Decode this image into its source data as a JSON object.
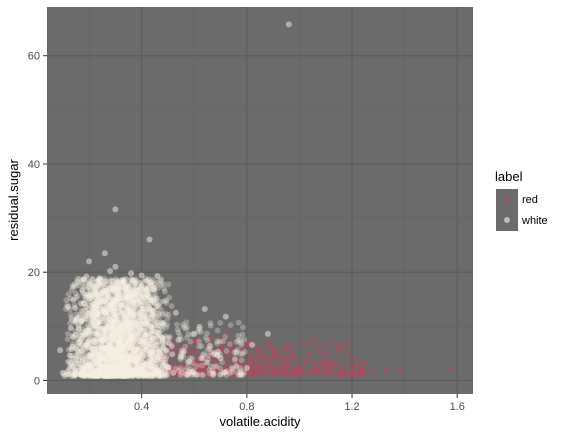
{
  "chart_data": {
    "type": "scatter",
    "xlabel": "volatile.acidity",
    "ylabel": "residual.sugar",
    "xlim": [
      0.04,
      1.66
    ],
    "ylim": [
      -2.5,
      69
    ],
    "x_ticks": [
      0.4,
      0.8,
      1.2,
      1.6
    ],
    "x_tick_labels": [
      "0.4",
      "0.8",
      "1.2",
      "1.6"
    ],
    "y_ticks": [
      0,
      20,
      40,
      60
    ],
    "y_tick_labels": [
      "0",
      "20",
      "40",
      "60"
    ],
    "grid": true,
    "legend": {
      "title": "label",
      "position": "right"
    },
    "colors": {
      "panel": "#6b6b6b",
      "grid_major": "#5a5a5a",
      "grid_minor": "#636363"
    },
    "series": [
      {
        "name": "red",
        "color": "#b8475e",
        "points": [
          [
            0.62,
            2.2
          ],
          [
            0.66,
            1.9
          ],
          [
            0.7,
            2.4
          ],
          [
            0.74,
            2.0
          ],
          [
            0.78,
            1.8
          ],
          [
            0.82,
            2.6
          ],
          [
            0.86,
            2.2
          ],
          [
            0.9,
            1.9
          ],
          [
            0.94,
            2.3
          ],
          [
            0.98,
            2.0
          ],
          [
            0.6,
            3.2
          ],
          [
            0.64,
            2.8
          ],
          [
            0.68,
            3.6
          ],
          [
            0.72,
            3.1
          ],
          [
            0.76,
            2.7
          ],
          [
            0.8,
            3.3
          ],
          [
            0.84,
            2.9
          ],
          [
            0.88,
            3.4
          ],
          [
            0.92,
            2.6
          ],
          [
            0.96,
            3.0
          ],
          [
            0.58,
            1.6
          ],
          [
            0.62,
            4.3
          ],
          [
            0.66,
            5.0
          ],
          [
            0.7,
            4.1
          ],
          [
            0.74,
            5.6
          ],
          [
            0.78,
            4.6
          ],
          [
            0.82,
            3.9
          ],
          [
            0.86,
            4.4
          ],
          [
            0.9,
            5.2
          ],
          [
            0.94,
            4.0
          ],
          [
            1.0,
            2.3
          ],
          [
            1.04,
            1.8
          ],
          [
            1.08,
            2.5
          ],
          [
            1.12,
            2.1
          ],
          [
            1.16,
            1.7
          ],
          [
            1.2,
            2.4
          ],
          [
            1.24,
            2.0
          ],
          [
            1.28,
            1.6
          ],
          [
            1.33,
            1.9
          ],
          [
            1.58,
            2.1
          ],
          [
            0.55,
            2.1
          ],
          [
            0.52,
            1.9
          ],
          [
            0.5,
            2.4
          ],
          [
            0.48,
            2.0
          ],
          [
            0.46,
            1.8
          ],
          [
            0.44,
            2.2
          ],
          [
            0.42,
            2.6
          ],
          [
            0.4,
            2.3
          ],
          [
            0.38,
            1.9
          ],
          [
            0.36,
            2.5
          ],
          [
            0.56,
            6.4
          ],
          [
            0.6,
            7.2
          ],
          [
            0.66,
            7.7
          ],
          [
            0.7,
            6.2
          ],
          [
            0.74,
            7.0
          ],
          [
            0.8,
            6.6
          ],
          [
            0.84,
            5.9
          ],
          [
            0.88,
            6.8
          ],
          [
            1.12,
            3.1
          ],
          [
            1.38,
            1.8
          ],
          [
            1.02,
            3.4
          ],
          [
            1.06,
            2.9
          ],
          [
            1.1,
            3.8
          ],
          [
            0.98,
            4.6
          ],
          [
            0.72,
            8.3
          ],
          [
            0.64,
            2.4
          ],
          [
            0.68,
            1.5
          ],
          [
            0.76,
            3.5
          ],
          [
            0.84,
            2.1
          ],
          [
            0.92,
            1.7
          ]
        ]
      },
      {
        "name": "white",
        "color": "#f6f1e4",
        "points": [
          [
            0.96,
            65.8
          ],
          [
            0.3,
            31.6
          ],
          [
            0.43,
            26.05
          ],
          [
            0.26,
            23.5
          ],
          [
            0.2,
            22.0
          ],
          [
            0.3,
            21.0
          ],
          [
            0.28,
            20.2
          ],
          [
            0.36,
            19.8
          ],
          [
            0.4,
            19.4
          ],
          [
            0.46,
            19.3
          ],
          [
            0.24,
            18.9
          ],
          [
            0.33,
            18.0
          ],
          [
            0.22,
            17.4
          ],
          [
            0.27,
            17.0
          ],
          [
            0.38,
            16.6
          ],
          [
            0.25,
            16.2
          ],
          [
            0.2,
            15.8
          ],
          [
            0.35,
            15.3
          ],
          [
            0.29,
            14.8
          ],
          [
            0.18,
            14.3
          ],
          [
            0.24,
            13.9
          ],
          [
            0.31,
            13.4
          ],
          [
            0.44,
            13.0
          ],
          [
            0.26,
            12.6
          ],
          [
            0.21,
            12.1
          ],
          [
            0.34,
            11.7
          ],
          [
            0.28,
            11.2
          ],
          [
            0.17,
            10.8
          ],
          [
            0.4,
            10.4
          ],
          [
            0.23,
            9.9
          ],
          [
            0.3,
            9.5
          ],
          [
            0.26,
            9.1
          ],
          [
            0.2,
            8.6
          ],
          [
            0.36,
            8.2
          ],
          [
            0.48,
            7.8
          ],
          [
            0.25,
            7.3
          ],
          [
            0.32,
            6.9
          ],
          [
            0.19,
            6.5
          ],
          [
            0.27,
            6.0
          ],
          [
            0.42,
            5.6
          ],
          [
            0.22,
            5.1
          ],
          [
            0.29,
            4.7
          ],
          [
            0.35,
            4.3
          ],
          [
            0.16,
            3.8
          ],
          [
            0.26,
            3.4
          ],
          [
            0.31,
            3.0
          ],
          [
            0.21,
            2.5
          ],
          [
            0.38,
            2.1
          ],
          [
            0.24,
            1.7
          ],
          [
            0.3,
            1.3
          ],
          [
            0.46,
            1.6
          ],
          [
            0.52,
            1.4
          ],
          [
            0.56,
            5.4
          ],
          [
            0.62,
            9.9
          ],
          [
            0.72,
            11.8
          ],
          [
            0.66,
            6.4
          ],
          [
            0.58,
            3.5
          ],
          [
            0.5,
            2.4
          ],
          [
            0.54,
            7.5
          ],
          [
            0.6,
            8.6
          ],
          [
            0.88,
            8.6
          ],
          [
            0.82,
            6.6
          ],
          [
            0.76,
            5.2
          ],
          [
            0.7,
            4.1
          ],
          [
            0.64,
            13.2
          ],
          [
            0.53,
            12.5
          ],
          [
            0.48,
            10.5
          ],
          [
            0.45,
            14.3
          ],
          [
            0.12,
            13.6
          ],
          [
            0.1,
            1.4
          ],
          [
            0.14,
            8.0
          ],
          [
            0.09,
            5.6
          ],
          [
            0.15,
            11.0
          ],
          [
            0.13,
            3.2
          ],
          [
            0.19,
            19.2
          ],
          [
            0.34,
            17.2
          ],
          [
            0.42,
            15.9
          ],
          [
            0.55,
            4.5
          ],
          [
            0.8,
            2.3
          ],
          [
            0.58,
            1.6
          ]
        ]
      }
    ]
  }
}
